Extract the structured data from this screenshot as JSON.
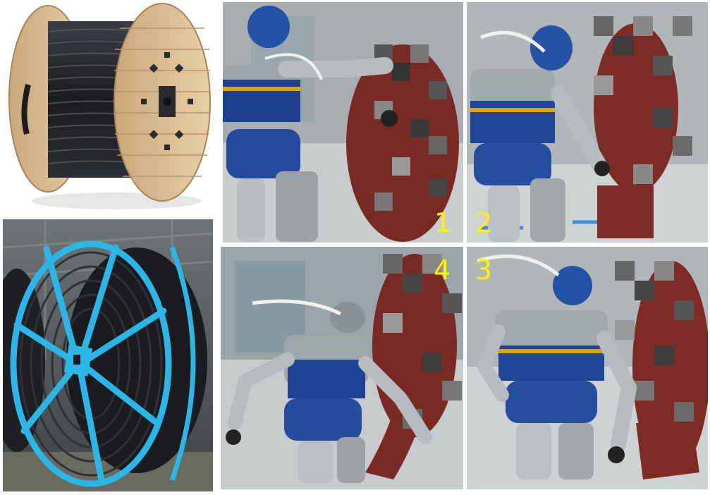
{
  "colors": {
    "step_label": "#fff200",
    "background": "#ffffff"
  },
  "panels": [
    {
      "id": "cable-drum-wooden",
      "icon": "wooden-cable-drum"
    },
    {
      "id": "cable-drum-steel",
      "icon": "blue-steel-cable-drum"
    },
    {
      "id": "robot-step-1",
      "step_label": "1"
    },
    {
      "id": "robot-step-2",
      "step_label": "2"
    },
    {
      "id": "robot-step-4",
      "step_label": "4"
    },
    {
      "id": "robot-step-3",
      "step_label": "3"
    }
  ]
}
